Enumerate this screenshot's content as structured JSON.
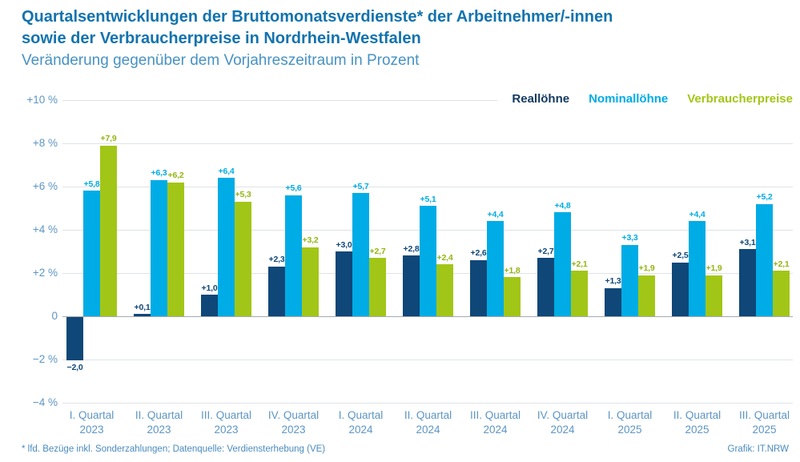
{
  "header": {
    "title_line1": "Quartalsentwicklungen der Bruttomonatsverdienste* der Arbeitnehmer/-innen",
    "title_line2": "sowie der Verbraucherpreise in Nordrhein-Westfalen",
    "subtitle": "Veränderung gegenüber dem Vorjahreszeitraum in Prozent"
  },
  "footer": {
    "note": "* lfd. Bezüge inkl. Sonderzahlungen; Datenquelle: Verdiensterhebung (VE)",
    "credit": "Grafik: IT.NRW"
  },
  "chart_data": {
    "type": "bar",
    "title": "Quartalsentwicklungen der Bruttomonatsverdienste der Arbeitnehmer/-innen sowie der Verbraucherpreise in Nordrhein-Westfalen",
    "subtitle": "Veränderung gegenüber dem Vorjahreszeitraum in Prozent",
    "unit": "percent",
    "grid": true,
    "legend_position": "top-right",
    "categories": [
      {
        "quarter": "I. Quartal",
        "year": "2023"
      },
      {
        "quarter": "II. Quartal",
        "year": "2023"
      },
      {
        "quarter": "III. Quartal",
        "year": "2023"
      },
      {
        "quarter": "IV. Quartal",
        "year": "2023"
      },
      {
        "quarter": "I. Quartal",
        "year": "2024"
      },
      {
        "quarter": "II. Quartal",
        "year": "2024"
      },
      {
        "quarter": "III. Quartal",
        "year": "2024"
      },
      {
        "quarter": "IV. Quartal",
        "year": "2024"
      },
      {
        "quarter": "I. Quartal",
        "year": "2025"
      },
      {
        "quarter": "II. Quartal",
        "year": "2025"
      },
      {
        "quarter": "III. Quartal",
        "year": "2025"
      }
    ],
    "series": [
      {
        "name": "Reallöhne",
        "color": "#0f4778",
        "label_color": "#0f4778",
        "values": [
          -2.0,
          0.1,
          1.0,
          2.3,
          3.0,
          2.8,
          2.6,
          2.7,
          1.3,
          2.5,
          3.1
        ],
        "labels": [
          "−2,0",
          "+0,1",
          "+1,0",
          "+2,3",
          "+3,0",
          "+2,8",
          "+2,6",
          "+2,7",
          "+1,3",
          "+2,5",
          "+3,1"
        ]
      },
      {
        "name": "Nominallöhne",
        "color": "#00ace5",
        "label_color": "#00ace5",
        "values": [
          5.8,
          6.3,
          6.4,
          5.6,
          5.7,
          5.1,
          4.4,
          4.8,
          3.3,
          4.4,
          5.2
        ],
        "labels": [
          "+5,8",
          "+6,3",
          "+6,4",
          "+5,6",
          "+5,7",
          "+5,1",
          "+4,4",
          "+4,8",
          "+3,3",
          "+4,4",
          "+5,2"
        ]
      },
      {
        "name": "Verbraucherpreise",
        "color": "#a2c617",
        "label_color": "#93b512",
        "values": [
          7.9,
          6.2,
          5.3,
          3.2,
          2.7,
          2.4,
          1.8,
          2.1,
          1.9,
          1.9,
          2.1
        ],
        "labels": [
          "+7,9",
          "+6,2",
          "+5,3",
          "+3,2",
          "+2,7",
          "+2,4",
          "+1,8",
          "+2,1",
          "+1,9",
          "+1,9",
          "+2,1"
        ]
      }
    ],
    "ylim": [
      -4,
      10
    ],
    "yticks": [
      {
        "value": 10,
        "label": "+10 %"
      },
      {
        "value": 8,
        "label": "+8 %"
      },
      {
        "value": 6,
        "label": "+6 %"
      },
      {
        "value": 4,
        "label": "+4 %"
      },
      {
        "value": 2,
        "label": "+2 %"
      },
      {
        "value": 0,
        "label": "0"
      },
      {
        "value": -2,
        "label": "−2 %"
      },
      {
        "value": -4,
        "label": "−4 %"
      }
    ]
  }
}
